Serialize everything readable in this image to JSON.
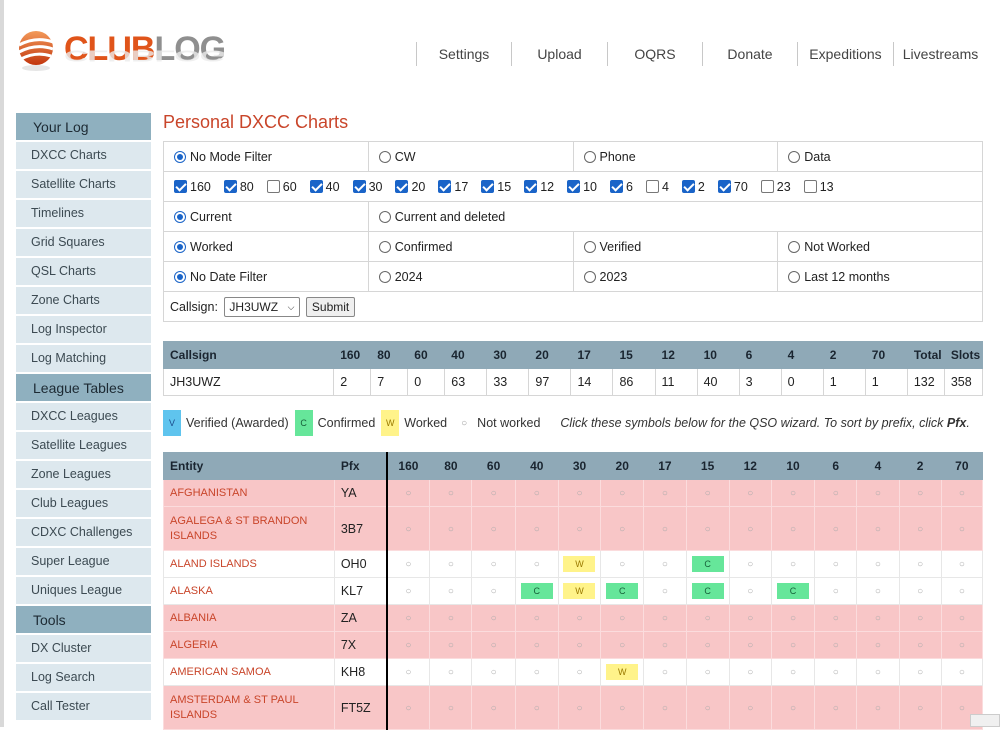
{
  "logo": {
    "club": "CLUB",
    "log": "LOG"
  },
  "nav": [
    "Settings",
    "Upload",
    "OQRS",
    "Donate",
    "Expeditions",
    "Livestreams"
  ],
  "sidebar": {
    "sections": [
      {
        "title": "Your Log",
        "items": [
          "DXCC Charts",
          "Satellite Charts",
          "Timelines",
          "Grid Squares",
          "QSL Charts",
          "Zone Charts",
          "Log Inspector",
          "Log Matching"
        ]
      },
      {
        "title": "League Tables",
        "items": [
          "DXCC Leagues",
          "Satellite Leagues",
          "Zone Leagues",
          "Club Leagues",
          "CDXC Challenges",
          "Super League",
          "Uniques League"
        ]
      },
      {
        "title": "Tools",
        "items": [
          "DX Cluster",
          "Log Search",
          "Call Tester"
        ]
      }
    ]
  },
  "page": {
    "title": "Personal DXCC Charts"
  },
  "filters": {
    "modes": [
      {
        "label": "No Mode Filter",
        "on": true
      },
      {
        "label": "CW",
        "on": false
      },
      {
        "label": "Phone",
        "on": false
      },
      {
        "label": "Data",
        "on": false
      }
    ],
    "bands": [
      {
        "label": "160",
        "on": true
      },
      {
        "label": "80",
        "on": true
      },
      {
        "label": "60",
        "on": false
      },
      {
        "label": "40",
        "on": true
      },
      {
        "label": "30",
        "on": true
      },
      {
        "label": "20",
        "on": true
      },
      {
        "label": "17",
        "on": true
      },
      {
        "label": "15",
        "on": true
      },
      {
        "label": "12",
        "on": true
      },
      {
        "label": "10",
        "on": true
      },
      {
        "label": "6",
        "on": true
      },
      {
        "label": "4",
        "on": false
      },
      {
        "label": "2",
        "on": true
      },
      {
        "label": "70",
        "on": true
      },
      {
        "label": "23",
        "on": false
      },
      {
        "label": "13",
        "on": false
      }
    ],
    "status": [
      {
        "label": "Current",
        "on": true
      },
      {
        "label": "Current and deleted",
        "on": false
      }
    ],
    "confirm": [
      {
        "label": "Worked",
        "on": true
      },
      {
        "label": "Confirmed",
        "on": false
      },
      {
        "label": "Verified",
        "on": false
      },
      {
        "label": "Not Worked",
        "on": false
      }
    ],
    "dates": [
      {
        "label": "No Date Filter",
        "on": true
      },
      {
        "label": "2024",
        "on": false
      },
      {
        "label": "2023",
        "on": false
      },
      {
        "label": "Last 12 months",
        "on": false
      }
    ],
    "callsign_label": "Callsign:",
    "callsign_value": "JH3UWZ",
    "submit_label": "Submit"
  },
  "summary": {
    "headers": [
      "Callsign",
      "160",
      "80",
      "60",
      "40",
      "30",
      "20",
      "17",
      "15",
      "12",
      "10",
      "6",
      "4",
      "2",
      "70",
      "Total",
      "Slots"
    ],
    "row": [
      "JH3UWZ",
      "2",
      "7",
      "0",
      "63",
      "33",
      "97",
      "14",
      "86",
      "11",
      "40",
      "3",
      "0",
      "1",
      "1",
      "132",
      "358"
    ]
  },
  "legend": {
    "v": "V",
    "v_label": "Verified (Awarded)",
    "c": "C",
    "c_label": "Confirmed",
    "w": "W",
    "w_label": "Worked",
    "dot": "○",
    "none_label": "Not worked",
    "note": "Click these symbols below for the QSO wizard. To sort by prefix, click ",
    "note_bold": "Pfx",
    "note_end": "."
  },
  "grid": {
    "headers": [
      "Entity",
      "Pfx",
      "160",
      "80",
      "60",
      "40",
      "30",
      "20",
      "17",
      "15",
      "12",
      "10",
      "6",
      "4",
      "2",
      "70"
    ],
    "rows": [
      {
        "entity": "AFGHANISTAN",
        "pfx": "YA",
        "worked": false,
        "tall": false,
        "cells": [
          "",
          "",
          "",
          "",
          "",
          "",
          "",
          "",
          "",
          "",
          "",
          "",
          "",
          ""
        ]
      },
      {
        "entity": "AGALEGA & ST BRANDON ISLANDS",
        "pfx": "3B7",
        "worked": false,
        "tall": true,
        "cells": [
          "",
          "",
          "",
          "",
          "",
          "",
          "",
          "",
          "",
          "",
          "",
          "",
          "",
          ""
        ]
      },
      {
        "entity": "ALAND ISLANDS",
        "pfx": "OH0",
        "worked": true,
        "tall": false,
        "cells": [
          "",
          "",
          "",
          "",
          "W",
          "",
          "",
          "C",
          "",
          "",
          "",
          "",
          "",
          ""
        ]
      },
      {
        "entity": "ALASKA",
        "pfx": "KL7",
        "worked": true,
        "tall": false,
        "cells": [
          "",
          "",
          "",
          "C",
          "W",
          "C",
          "",
          "C",
          "",
          "C",
          "",
          "",
          "",
          ""
        ]
      },
      {
        "entity": "ALBANIA",
        "pfx": "ZA",
        "worked": false,
        "tall": false,
        "cells": [
          "",
          "",
          "",
          "",
          "",
          "",
          "",
          "",
          "",
          "",
          "",
          "",
          "",
          ""
        ]
      },
      {
        "entity": "ALGERIA",
        "pfx": "7X",
        "worked": false,
        "tall": false,
        "cells": [
          "",
          "",
          "",
          "",
          "",
          "",
          "",
          "",
          "",
          "",
          "",
          "",
          "",
          ""
        ]
      },
      {
        "entity": "AMERICAN SAMOA",
        "pfx": "KH8",
        "worked": true,
        "tall": false,
        "cells": [
          "",
          "",
          "",
          "",
          "",
          "W",
          "",
          "",
          "",
          "",
          "",
          "",
          "",
          ""
        ]
      },
      {
        "entity": "AMSTERDAM & ST PAUL ISLANDS",
        "pfx": "FT5Z",
        "worked": false,
        "tall": true,
        "cells": [
          "",
          "",
          "",
          "",
          "",
          "",
          "",
          "",
          "",
          "",
          "",
          "",
          "",
          ""
        ]
      }
    ],
    "empty_symbol": "○"
  }
}
